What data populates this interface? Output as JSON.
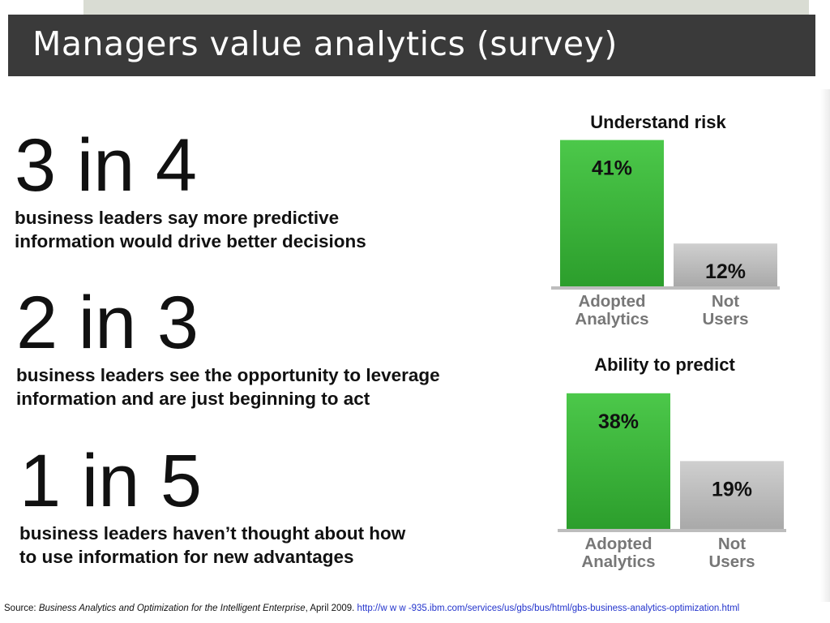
{
  "slide": {
    "title": "Managers value analytics (survey)"
  },
  "stats": [
    {
      "big": "3 in 4",
      "desc": "business leaders say more predictive\ninformation would drive better decisions"
    },
    {
      "big": "2 in 3",
      "desc": "business leaders see the opportunity to leverage\ninformation and are just beginning to act"
    },
    {
      "big": "1 in 5",
      "desc": "business leaders haven’t thought about how\nto use information for new advantages"
    }
  ],
  "chart_data": [
    {
      "type": "bar",
      "title": "Understand risk",
      "categories": [
        [
          "Adopted",
          "Analytics"
        ],
        [
          "Not",
          "Users"
        ]
      ],
      "values": [
        41,
        12
      ],
      "value_labels": [
        "41%",
        "12%"
      ],
      "ylim": [
        0,
        45
      ],
      "colors": [
        "#3bb83b",
        "#bdbdbd"
      ],
      "grid": false,
      "legend": "none"
    },
    {
      "type": "bar",
      "title": "Ability to predict",
      "categories": [
        [
          "Adopted",
          "Analytics"
        ],
        [
          "Not",
          "Users"
        ]
      ],
      "values": [
        38,
        19
      ],
      "value_labels": [
        "38%",
        "19%"
      ],
      "ylim": [
        0,
        45
      ],
      "colors": [
        "#3bb83b",
        "#bdbdbd"
      ],
      "grid": false,
      "legend": "none"
    }
  ],
  "source": {
    "prefix": "Source: ",
    "title": "Business Analytics and Optimization for the Intelligent Enterprise",
    "date": ", April 2009. ",
    "link": "http://w w w -935.ibm.com/services/us/gbs/bus/html/gbs-business-analytics-optimization.html"
  },
  "colors": {
    "title_bar": "#3a3a3a",
    "top_strip": "#d9dcd3",
    "green_bar": "#3bb83b",
    "gray_bar": "#bdbdbd",
    "link": "#2233cc"
  }
}
